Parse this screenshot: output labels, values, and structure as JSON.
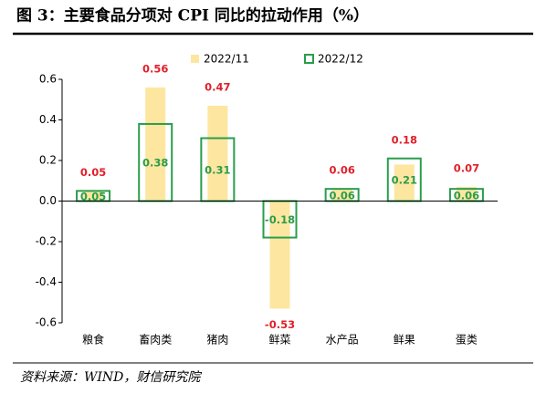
{
  "chart_data": {
    "type": "bar",
    "title": "图 3：主要食品分项对 CPI 同比的拉动作用（%）",
    "source": "资料来源：WIND，财信研究院",
    "categories": [
      "粮食",
      "畜肉类",
      "猪肉",
      "鲜菜",
      "水产品",
      "鲜果",
      "蛋类"
    ],
    "series": [
      {
        "name": "2022/11",
        "color": "#fde6a0",
        "label_color": "#e0202a",
        "values": [
          0.05,
          0.56,
          0.47,
          -0.53,
          0.06,
          0.18,
          0.07
        ]
      },
      {
        "name": "2022/12",
        "color": "#2a9d4b",
        "label_color": "#2a9d4b",
        "values": [
          0.05,
          0.38,
          0.31,
          -0.18,
          0.06,
          0.21,
          0.06
        ]
      }
    ],
    "ylim": [
      -0.6,
      0.6
    ],
    "yticks": [
      -0.6,
      -0.4,
      -0.2,
      {
        "value": 0,
        "label": "0.0"
      },
      0.2,
      0.4,
      0.6
    ],
    "grid": false,
    "legend": "top"
  }
}
